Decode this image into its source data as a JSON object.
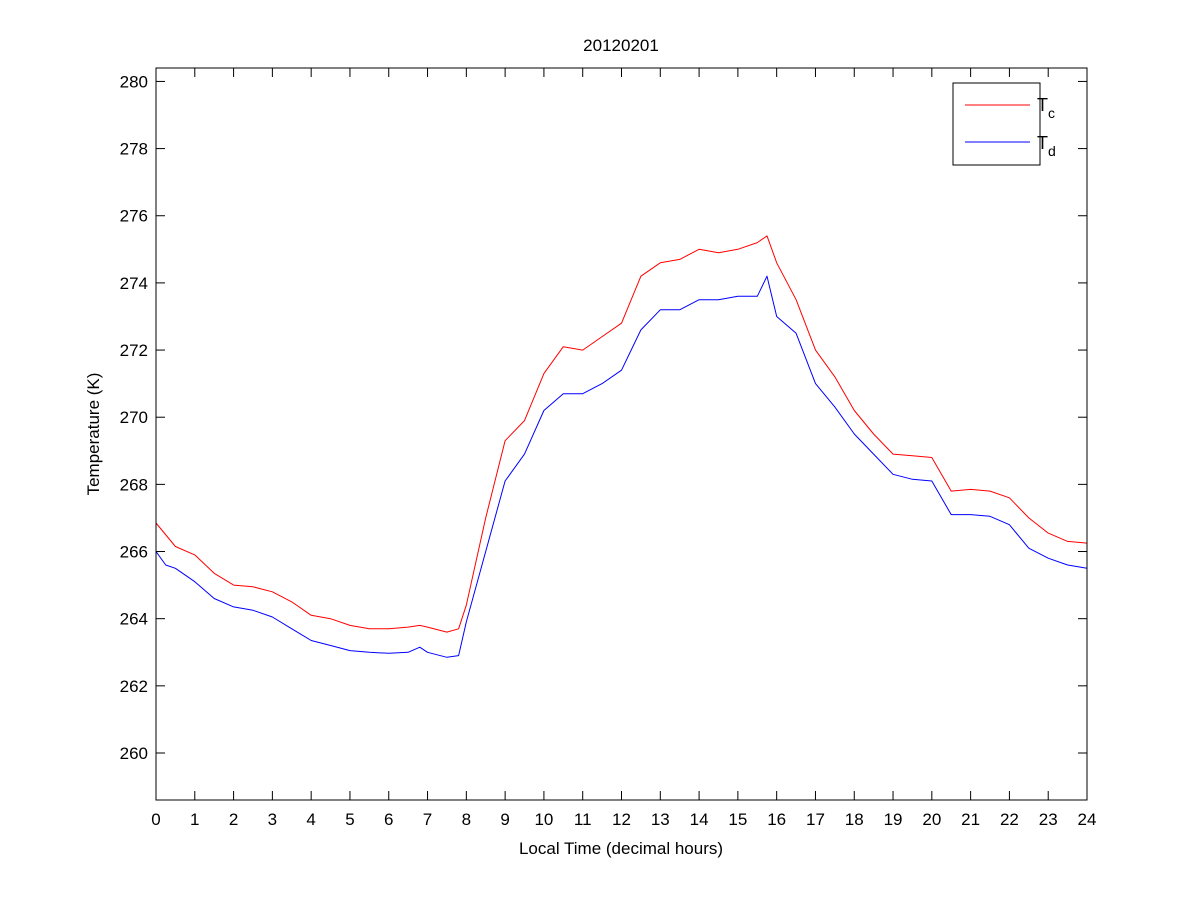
{
  "chart_data": {
    "type": "line",
    "title": "20120201",
    "xlabel": "Local Time (decimal hours)",
    "ylabel": "Temperature (K)",
    "xlim": [
      0,
      24
    ],
    "ylim": [
      258.6,
      280.4
    ],
    "xticks": [
      0,
      1,
      2,
      3,
      4,
      5,
      6,
      7,
      8,
      9,
      10,
      11,
      12,
      13,
      14,
      15,
      16,
      17,
      18,
      19,
      20,
      21,
      22,
      23,
      24
    ],
    "yticks": [
      260,
      262,
      264,
      266,
      268,
      270,
      272,
      274,
      276,
      278,
      280
    ],
    "grid": false,
    "legend_position": "top-right",
    "series": [
      {
        "name": "Tc",
        "label_main": "T",
        "label_sub": "c",
        "color": "#ff0000",
        "x": [
          0,
          0.5,
          1,
          1.5,
          2,
          2.5,
          3,
          3.5,
          4,
          4.5,
          5,
          5.5,
          6,
          6.5,
          6.8,
          7,
          7.5,
          7.8,
          8,
          8.5,
          9,
          9.5,
          10,
          10.5,
          11,
          11.5,
          12,
          12.5,
          13,
          13.5,
          14,
          14.5,
          15,
          15.5,
          15.75,
          16,
          16.5,
          17,
          17.5,
          18,
          18.5,
          19,
          19.5,
          20,
          20.5,
          21,
          21.5,
          22,
          22.5,
          23,
          23.5,
          24
        ],
        "y": [
          266.85,
          266.15,
          265.9,
          265.35,
          265.0,
          264.95,
          264.8,
          264.5,
          264.1,
          264.0,
          263.8,
          263.7,
          263.7,
          263.75,
          263.8,
          263.75,
          263.6,
          263.7,
          264.4,
          267.0,
          269.3,
          269.9,
          271.3,
          272.1,
          272.0,
          272.4,
          272.8,
          274.2,
          274.6,
          274.7,
          275.0,
          274.9,
          275.0,
          275.2,
          275.4,
          274.6,
          273.5,
          272.0,
          271.2,
          270.2,
          269.5,
          268.9,
          268.85,
          268.8,
          267.8,
          267.85,
          267.8,
          267.6,
          267.0,
          266.55,
          266.3,
          266.25
        ]
      },
      {
        "name": "Td",
        "label_main": "T",
        "label_sub": "d",
        "color": "#0000ff",
        "x": [
          0,
          0.25,
          0.5,
          1,
          1.5,
          2,
          2.5,
          3,
          3.5,
          4,
          4.5,
          5,
          5.5,
          6,
          6.5,
          6.8,
          7,
          7.5,
          7.8,
          8,
          8.5,
          9,
          9.5,
          10,
          10.5,
          11,
          11.5,
          12,
          12.5,
          13,
          13.5,
          14,
          14.5,
          15,
          15.5,
          15.75,
          16,
          16.5,
          17,
          17.5,
          18,
          18.5,
          19,
          19.5,
          20,
          20.5,
          21,
          21.5,
          22,
          22.5,
          23,
          23.5,
          24
        ],
        "y": [
          266.0,
          265.6,
          265.5,
          265.1,
          264.6,
          264.35,
          264.25,
          264.05,
          263.7,
          263.35,
          263.2,
          263.05,
          263.0,
          262.97,
          263.0,
          263.15,
          263.0,
          262.85,
          262.9,
          263.9,
          266.0,
          268.1,
          268.9,
          270.2,
          270.7,
          270.7,
          271.0,
          271.4,
          272.6,
          273.2,
          273.2,
          273.5,
          273.5,
          273.6,
          273.6,
          274.2,
          273.0,
          272.5,
          271.0,
          270.3,
          269.5,
          268.9,
          268.3,
          268.15,
          268.1,
          267.1,
          267.1,
          267.05,
          266.8,
          266.1,
          265.8,
          265.6,
          265.5
        ]
      }
    ]
  }
}
